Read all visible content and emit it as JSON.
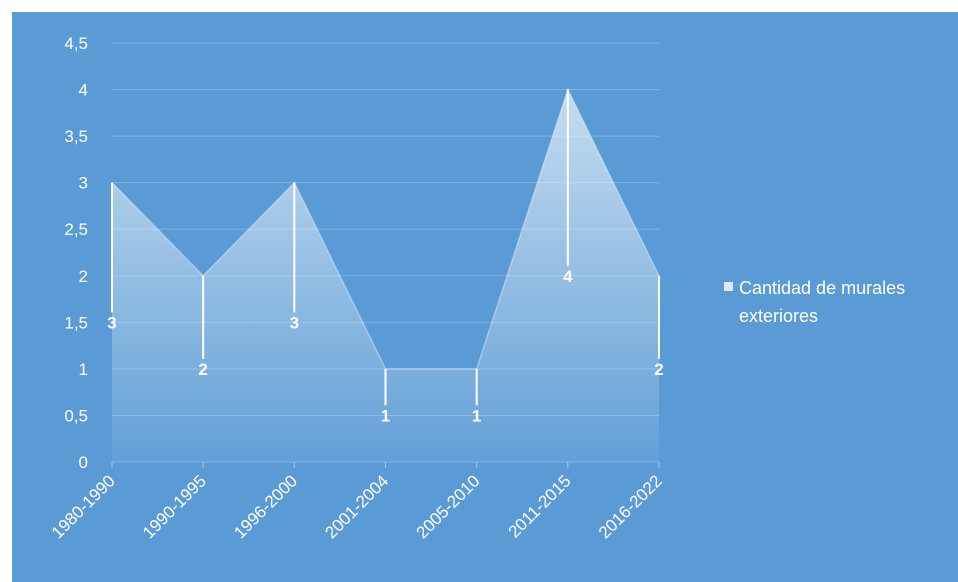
{
  "chart_data": {
    "type": "area",
    "categories": [
      "1980-1990",
      "1990-1995",
      "1996-2000",
      "2001-2004",
      "2005-2010",
      "2011-2015",
      "2016-2022"
    ],
    "series": [
      {
        "name": "Cantidad de murales exteriores",
        "values": [
          3,
          2,
          3,
          1,
          1,
          4,
          2
        ]
      }
    ],
    "data_labels": [
      "3",
      "2",
      "3",
      "1",
      "1",
      "4",
      "2"
    ],
    "ylim": [
      0,
      4.5
    ],
    "y_ticks": [
      "0",
      "0,5",
      "1",
      "1,5",
      "2",
      "2,5",
      "3",
      "3,5",
      "4",
      "4,5"
    ],
    "grid": true,
    "legend_position": "right",
    "title": "",
    "xlabel": "",
    "ylabel": ""
  },
  "legend": {
    "line1": "Cantidad de murales",
    "line2": "exteriores"
  },
  "colors": {
    "background": "#5b9bd5",
    "area_fill": "#ffffff",
    "gridline": "#7fb1e0",
    "text": "#ffffff"
  }
}
